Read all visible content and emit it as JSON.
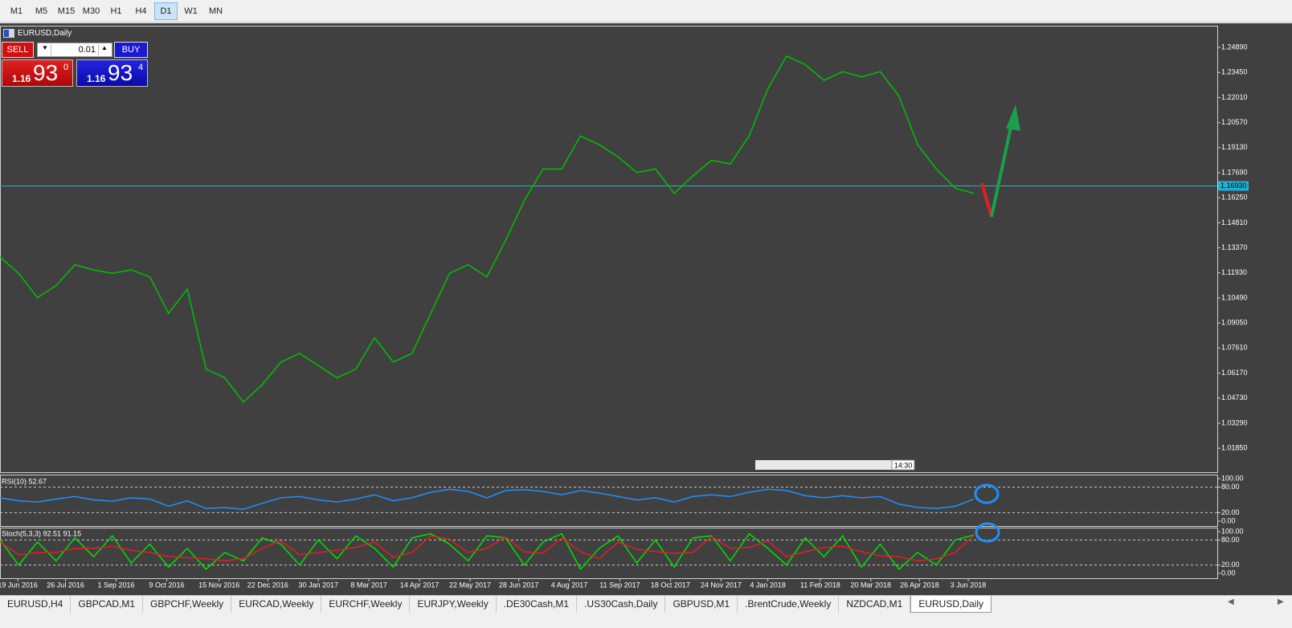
{
  "toolbar": {
    "timeframes": [
      "M1",
      "M5",
      "M15",
      "M30",
      "H1",
      "H4",
      "D1",
      "W1",
      "MN"
    ],
    "active": "D1"
  },
  "chart_window": {
    "symbol": "EURUSD,Daily",
    "trade_panel": {
      "sell": "SELL",
      "buy": "BUY",
      "lot": "0.01",
      "bid": {
        "big": "1.16",
        "pips": "93",
        "frac": "0"
      },
      "ask": {
        "big": "1.16",
        "pips": "93",
        "frac": "4"
      }
    },
    "time_label": "14:30"
  },
  "chart_data": [
    {
      "type": "line",
      "color": "#00c000",
      "values": [
        1.1284,
        1.119,
        1.105,
        1.112,
        1.124,
        1.121,
        1.119,
        1.121,
        1.117,
        1.096,
        1.11,
        1.064,
        1.059,
        1.045,
        1.055,
        1.068,
        1.073,
        1.066,
        1.059,
        1.064,
        1.082,
        1.068,
        1.073,
        1.096,
        1.119,
        1.124,
        1.117,
        1.138,
        1.161,
        1.179,
        1.179,
        1.198,
        1.193,
        1.186,
        1.177,
        1.179,
        1.165,
        1.175,
        1.184,
        1.182,
        1.198,
        1.225,
        1.244,
        1.239,
        1.23,
        1.235,
        1.232,
        1.235,
        1.221,
        1.193,
        1.179,
        1.168,
        1.165
      ],
      "xlim": [
        0,
        65
      ],
      "ylim": [
        1.0047,
        1.2614
      ],
      "yticks": [
        {
          "value": 1.2489,
          "label": "1.24890"
        },
        {
          "value": 1.2345,
          "label": "1.23450"
        },
        {
          "value": 1.2201,
          "label": "1.22010"
        },
        {
          "value": 1.2057,
          "label": "1.20570"
        },
        {
          "value": 1.1913,
          "label": "1.19130"
        },
        {
          "value": 1.1769,
          "label": "1.17690"
        },
        {
          "value": 1.1625,
          "label": "1.16250"
        },
        {
          "value": 1.1481,
          "label": "1.14810"
        },
        {
          "value": 1.1337,
          "label": "1.13370"
        },
        {
          "value": 1.1193,
          "label": "1.11930"
        },
        {
          "value": 1.1049,
          "label": "1.10490"
        },
        {
          "value": 1.0905,
          "label": "1.09050"
        },
        {
          "value": 1.0761,
          "label": "1.07610"
        },
        {
          "value": 1.0617,
          "label": "1.06170"
        },
        {
          "value": 1.0473,
          "label": "1.04730"
        },
        {
          "value": 1.0329,
          "label": "1.03290"
        },
        {
          "value": 1.0185,
          "label": "1.01850"
        }
      ],
      "current_price": {
        "value": 1.1693,
        "label": "1.16930"
      }
    },
    {
      "type": "line",
      "title": "RSI(10) 52.67",
      "color": "#1e90ff",
      "values": [
        55,
        48,
        45,
        52,
        58,
        50,
        47,
        55,
        52,
        35,
        48,
        30,
        32,
        28,
        42,
        55,
        58,
        50,
        45,
        52,
        62,
        48,
        55,
        68,
        75,
        70,
        55,
        72,
        74,
        70,
        62,
        72,
        66,
        58,
        50,
        55,
        45,
        58,
        62,
        58,
        68,
        75,
        72,
        60,
        55,
        60,
        55,
        58,
        40,
        32,
        30,
        35,
        52
      ],
      "xlim": [
        0,
        65
      ],
      "ylim": [
        0,
        100
      ],
      "yticks": [
        {
          "value": 100,
          "label": "100.00"
        },
        {
          "value": 80,
          "label": "80.00"
        },
        {
          "value": 20,
          "label": "20.00"
        },
        {
          "value": 0,
          "label": "0.00"
        }
      ]
    },
    {
      "type": "line",
      "title": "Stoch(5,3,3) 92.51 91.15",
      "series": [
        {
          "color": "#00e000",
          "values": [
            80,
            20,
            75,
            30,
            85,
            40,
            90,
            25,
            70,
            15,
            60,
            10,
            50,
            30,
            85,
            70,
            20,
            80,
            35,
            90,
            60,
            15,
            85,
            95,
            70,
            30,
            90,
            85,
            20,
            75,
            95,
            10,
            60,
            90,
            25,
            80,
            15,
            85,
            90,
            30,
            95,
            60,
            20,
            85,
            40,
            90,
            15,
            70,
            10,
            50,
            20,
            80,
            92
          ]
        },
        {
          "color": "#e02020",
          "values": [
            75,
            45,
            50,
            50,
            60,
            60,
            65,
            55,
            50,
            40,
            38,
            35,
            30,
            35,
            60,
            78,
            45,
            50,
            55,
            62,
            75,
            38,
            50,
            90,
            82,
            50,
            60,
            87,
            52,
            48,
            85,
            52,
            35,
            75,
            58,
            52,
            48,
            50,
            88,
            60,
            62,
            78,
            40,
            52,
            62,
            65,
            52,
            42,
            40,
            30,
            35,
            50,
            91
          ]
        }
      ],
      "xlim": [
        0,
        65
      ],
      "ylim": [
        0,
        100
      ],
      "yticks": [
        {
          "value": 100,
          "label": "100.00"
        },
        {
          "value": 80,
          "label": "80.00"
        },
        {
          "value": 20,
          "label": "20.00"
        },
        {
          "value": 0,
          "label": "0.00"
        }
      ],
      "xticks": [
        {
          "value": 0.95,
          "label": "19 Jun 2016"
        },
        {
          "value": 3.5,
          "label": "26 Jul 2016"
        },
        {
          "value": 6.2,
          "label": "1 Sep 2016"
        },
        {
          "value": 8.9,
          "label": "9 Oct 2016"
        },
        {
          "value": 11.7,
          "label": "15 Nov 2016"
        },
        {
          "value": 14.3,
          "label": "22 Dec 2016"
        },
        {
          "value": 17,
          "label": "30 Jan 2017"
        },
        {
          "value": 19.7,
          "label": "8 Mar 2017"
        },
        {
          "value": 22.4,
          "label": "14 Apr 2017"
        },
        {
          "value": 25.1,
          "label": "22 May 2017"
        },
        {
          "value": 27.7,
          "label": "28 Jun 2017"
        },
        {
          "value": 30.4,
          "label": "4 Aug 2017"
        },
        {
          "value": 33.1,
          "label": "11 Sep 2017"
        },
        {
          "value": 35.8,
          "label": "18 Oct 2017"
        },
        {
          "value": 38.5,
          "label": "24 Nov 2017"
        },
        {
          "value": 41,
          "label": "4 Jan 2018"
        },
        {
          "value": 43.8,
          "label": "11 Feb 2018"
        },
        {
          "value": 46.5,
          "label": "20 Mar 2018"
        },
        {
          "value": 49.1,
          "label": "26 Apr 2018"
        },
        {
          "value": 51.7,
          "label": "3 Jun 2018"
        }
      ]
    }
  ],
  "tabs": {
    "items": [
      "EURUSD,H4",
      "GBPCAD,M1",
      "GBPCHF,Weekly",
      "EURCAD,Weekly",
      "EURCHF,Weekly",
      "EURJPY,Weekly",
      ".DE30Cash,M1",
      ".US30Cash,Daily",
      "GBPUSD,M1",
      ".BrentCrude,Weekly",
      "NZDCAD,M1",
      "EURUSD,Daily"
    ],
    "active": "EURUSD,Daily"
  }
}
